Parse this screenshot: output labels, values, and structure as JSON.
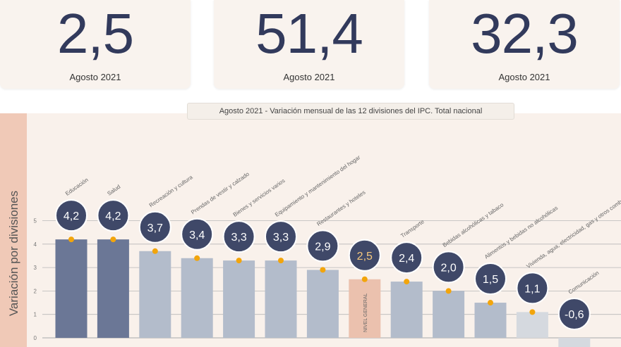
{
  "cards": [
    {
      "value": "2,5",
      "date": "Agosto 2021"
    },
    {
      "value": "51,4",
      "date": "Agosto 2021"
    },
    {
      "value": "32,3",
      "date": "Agosto 2021"
    }
  ],
  "side_label": "Variación por divisiones",
  "chart_data": {
    "type": "bar",
    "title": "Agosto 2021 - Variación mensual de las 12 divisiones del IPC. Total nacional",
    "ylabel": "Variación por divisiones",
    "ylim": [
      0,
      5
    ],
    "yticks": [
      "0",
      "1",
      "2",
      "3",
      "4",
      "5"
    ],
    "grid": true,
    "categories": [
      "Educación",
      "Salud",
      "Recreación y cultura",
      "Prendas de vestir y calzado",
      "Bienes y servicios varios",
      "Equipamiento y mantenimiento del hogar",
      "Restaurantes y hoteles",
      "NIVEL GENERAL",
      "Transporte",
      "Bebidas alcohólicas y tabaco",
      "Alimentos y bebidas no alcohólicas",
      "Vivienda, agua, electricidad, gas y otros combustibles",
      "Comunicación"
    ],
    "values": [
      4.2,
      4.2,
      3.7,
      3.4,
      3.3,
      3.3,
      2.9,
      2.5,
      2.4,
      2.0,
      1.5,
      1.1,
      -0.6
    ],
    "value_labels": [
      "4,2",
      "4,2",
      "3,7",
      "3,4",
      "3,3",
      "3,3",
      "2,9",
      "2,5",
      "2,4",
      "2,0",
      "1,5",
      "1,1",
      "-0,6"
    ],
    "colors": {
      "highlight": "#6b7796",
      "normal": "#b3bccb",
      "general": "#ebc1ae",
      "low": "#d5d9df",
      "bubble": "#3f4868",
      "dot": "#f2a50c",
      "value_text": "#f6c87d"
    }
  }
}
